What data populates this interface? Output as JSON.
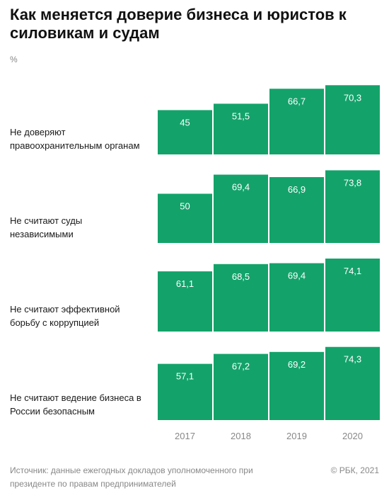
{
  "title": "Как меняется доверие бизнеса и юристов к силовикам и судам",
  "unit": "%",
  "source": "Источник: данные ежегодных докладов уполномоченного при президенте по правам предпринимателей",
  "copyright": "© РБК, 2021",
  "colors": {
    "bar": "#13a36a",
    "bar_label": "#ffffff",
    "axis_text": "#888888",
    "category_text": "#1a1a1a"
  },
  "chart_data": {
    "type": "bar",
    "title": "Как меняется доверие бизнеса и юристов к силовикам и судам",
    "ylabel": "%",
    "xlabel": "",
    "x": [
      "2017",
      "2018",
      "2019",
      "2020"
    ],
    "ylim": [
      0,
      75
    ],
    "grid": false,
    "legend": "none",
    "groups": [
      {
        "label": "Не доверяют правоохранительным органам",
        "values": [
          45,
          51.5,
          66.7,
          70.3
        ],
        "value_labels": [
          "45",
          "51,5",
          "66,7",
          "70,3"
        ]
      },
      {
        "label": "Не считают суды независимыми",
        "values": [
          50,
          69.4,
          66.9,
          73.8
        ],
        "value_labels": [
          "50",
          "69,4",
          "66,9",
          "73,8"
        ]
      },
      {
        "label": "Не считают эффективной борьбу с коррупцией",
        "values": [
          61.1,
          68.5,
          69.4,
          74.1
        ],
        "value_labels": [
          "61,1",
          "68,5",
          "69,4",
          "74,1"
        ]
      },
      {
        "label": "Не считают ведение бизнеса в России безопасным",
        "values": [
          57.1,
          67.2,
          69.2,
          74.3
        ],
        "value_labels": [
          "57,1",
          "67,2",
          "69,2",
          "74,3"
        ]
      }
    ]
  }
}
